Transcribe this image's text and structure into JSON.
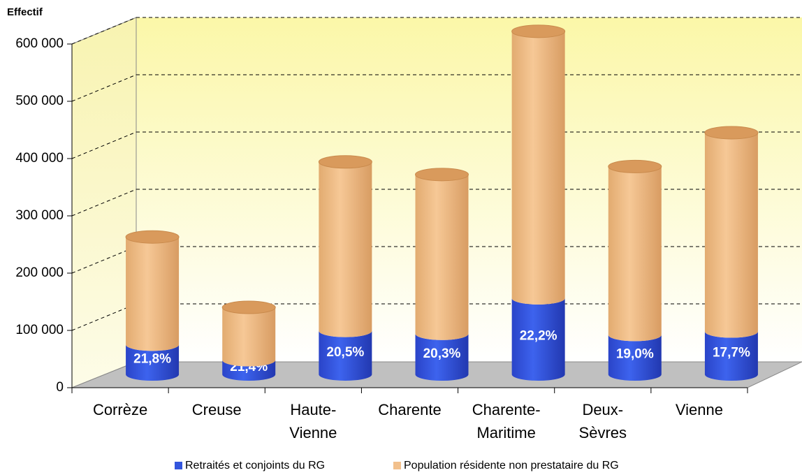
{
  "chart_data": {
    "type": "bar3d_stacked_cylinder",
    "y_label": "Effectif",
    "categories": [
      "Corrèze",
      "Creuse",
      "Haute-Vienne",
      "Charente",
      "Charente-Maritime",
      "Deux-Sèvres",
      "Vienne"
    ],
    "series": [
      {
        "name": "Retraités et conjoints du RG",
        "color": "#3355dd",
        "values": [
          52000,
          25000,
          76000,
          71000,
          133000,
          69000,
          75000
        ]
      },
      {
        "name": "Population résidente non prestataire du RG",
        "color": "#f2c08c",
        "values": [
          188000,
          92000,
          295000,
          278000,
          466000,
          294000,
          347000
        ]
      }
    ],
    "percent_labels": [
      "21,8%",
      "21,4%",
      "20,5%",
      "20,3%",
      "22,2%",
      "19,0%",
      "17,7%"
    ],
    "ylim": [
      0,
      600000
    ],
    "yticks": [
      {
        "value": 0,
        "label": "0"
      },
      {
        "value": 100000,
        "label": "100 000"
      },
      {
        "value": 200000,
        "label": "200 000"
      },
      {
        "value": 300000,
        "label": "300 000"
      },
      {
        "value": 400000,
        "label": "400 000"
      },
      {
        "value": 500000,
        "label": "500 000"
      },
      {
        "value": 600000,
        "label": "600 000"
      }
    ],
    "grid": true,
    "legend": "bottom"
  }
}
